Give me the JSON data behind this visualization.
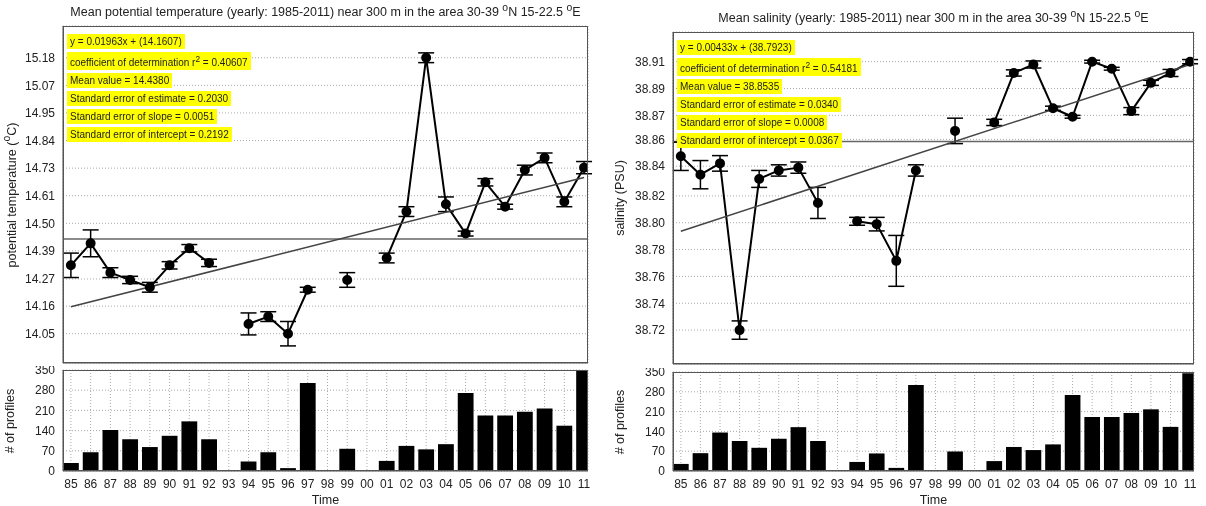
{
  "chart_data": [
    {
      "type": "line",
      "title": "Mean potential temperature (yearly: 1985-2011) near 300 m in the area 30-39 $^{o}$N 15-22.5 $^{o}$E",
      "ylabel": "potential temperature ($^{o}$C)",
      "categories": [
        "85",
        "86",
        "87",
        "88",
        "89",
        "90",
        "91",
        "92",
        "93",
        "94",
        "95",
        "96",
        "97",
        "98",
        "99",
        "00",
        "01",
        "02",
        "03",
        "04",
        "05",
        "06",
        "07",
        "08",
        "09",
        "10",
        "11"
      ],
      "series": [
        {
          "color": "#000000",
          "values": [
            14.33,
            14.42,
            14.3,
            14.27,
            14.24,
            14.33,
            14.4,
            14.34,
            null,
            14.09,
            14.12,
            14.05,
            14.23,
            null,
            14.27,
            null,
            14.36,
            14.55,
            15.18,
            14.58,
            14.46,
            14.67,
            14.57,
            14.72,
            14.77,
            14.59,
            14.73
          ],
          "errors": [
            0.05,
            0.055,
            0.02,
            0.015,
            0.02,
            0.015,
            0.015,
            0.015,
            null,
            0.045,
            0.02,
            0.05,
            0.01,
            null,
            0.03,
            null,
            0.02,
            0.02,
            0.02,
            0.03,
            0.01,
            0.015,
            0.01,
            0.02,
            0.02,
            0.02,
            0.025
          ]
        },
        {
          "type": "line",
          "color": "#444444",
          "x": [
            "85",
            "11"
          ],
          "values": [
            14.16,
            14.69
          ],
          "marker": "none"
        }
      ],
      "ref_lines": [
        {
          "axis": "y",
          "value": 14.438,
          "color": "#666666"
        }
      ],
      "ylim": [
        13.93,
        15.31
      ],
      "yticks": [
        {
          "value": 14.05,
          "label": "14.05"
        },
        {
          "value": 14.163,
          "label": "14.16"
        },
        {
          "value": 14.274,
          "label": "14.27"
        },
        {
          "value": 14.389,
          "label": "14.39"
        },
        {
          "value": 14.502,
          "label": "14.50"
        },
        {
          "value": 14.615,
          "label": "14.61"
        },
        {
          "value": 14.728,
          "label": "14.73"
        },
        {
          "value": 14.841,
          "label": "14.84"
        },
        {
          "value": 14.954,
          "label": "14.95"
        },
        {
          "value": 15.067,
          "label": "15.07"
        },
        {
          "value": 15.18,
          "label": "15.18"
        }
      ],
      "annotations": [
        "y = 0.01963x + (14.1607)",
        "coefficient of determination r$^{2}$ = 0.40607",
        "Mean value = 14.4380",
        "Standard error of estimate = 0.2030",
        "Standard error of slope = 0.0051",
        "Standard error of intercept = 0.2192"
      ],
      "grid": true,
      "marker": "circle",
      "tick_labels": "y"
    },
    {
      "type": "bar",
      "xlabel": "Time",
      "ylabel": "# of profiles",
      "color": "#000000",
      "categories": [
        "85",
        "86",
        "87",
        "88",
        "89",
        "90",
        "91",
        "92",
        "93",
        "94",
        "95",
        "96",
        "97",
        "98",
        "99",
        "00",
        "01",
        "02",
        "03",
        "04",
        "05",
        "06",
        "07",
        "08",
        "09",
        "10",
        "11"
      ],
      "values": [
        28,
        65,
        142,
        110,
        83,
        122,
        172,
        110,
        null,
        33,
        65,
        10,
        305,
        null,
        77,
        null,
        35,
        87,
        75,
        93,
        270,
        192,
        192,
        205,
        217,
        157,
        347
      ],
      "ylim": [
        0,
        350
      ],
      "yticks": [
        0,
        70,
        140,
        210,
        280,
        350
      ],
      "grid": true
    },
    {
      "type": "line",
      "title": "Mean salinity (yearly: 1985-2011) near 300 m in the area 30-39 $^{o}$N 15-22.5 $^{o}$E",
      "ylabel": "salinity (PSU)",
      "categories": [
        "85",
        "86",
        "87",
        "88",
        "89",
        "90",
        "91",
        "92",
        "93",
        "94",
        "95",
        "96",
        "97",
        "98",
        "99",
        "00",
        "01",
        "02",
        "03",
        "04",
        "05",
        "06",
        "07",
        "08",
        "09",
        "10",
        "11"
      ],
      "series": [
        {
          "color": "#000000",
          "values": [
            38.843,
            38.83,
            38.838,
            38.72,
            38.827,
            38.833,
            38.835,
            38.81,
            null,
            38.797,
            38.795,
            38.769,
            38.833,
            null,
            38.861,
            null,
            38.867,
            38.902,
            38.908,
            38.877,
            38.871,
            38.91,
            38.905,
            38.875,
            38.895,
            38.902,
            38.91
          ],
          "errors": [
            0.01,
            0.01,
            0.0055,
            0.0065,
            0.006,
            0.004,
            0.004,
            0.011,
            null,
            0.0028,
            0.0048,
            0.018,
            0.004,
            null,
            0.009,
            null,
            0.0022,
            0.0022,
            0.0025,
            0.0015,
            0.001,
            0.001,
            0.001,
            0.0025,
            0.0018,
            0.0025,
            0.0015
          ]
        },
        {
          "type": "line",
          "color": "#444444",
          "x": [
            "85",
            "11"
          ],
          "values": [
            38.79,
            38.908
          ],
          "marker": "none"
        }
      ],
      "ref_lines": [
        {
          "axis": "y",
          "value": 38.8535,
          "color": "#666666"
        }
      ],
      "ylim": [
        38.696,
        38.931
      ],
      "yticks": [
        {
          "value": 38.72,
          "label": "38.72"
        },
        {
          "value": 38.739,
          "label": "38.74"
        },
        {
          "value": 38.758,
          "label": "38.76"
        },
        {
          "value": 38.777,
          "label": "38.78"
        },
        {
          "value": 38.796,
          "label": "38.80"
        },
        {
          "value": 38.815,
          "label": "38.82"
        },
        {
          "value": 38.836,
          "label": "38.84"
        },
        {
          "value": 38.855,
          "label": "38.86"
        },
        {
          "value": 38.872,
          "label": "38.87"
        },
        {
          "value": 38.891,
          "label": "38.89"
        },
        {
          "value": 38.91,
          "label": "38.91"
        }
      ],
      "annotations": [
        "y = 0.00433x + (38.7923)",
        "coefficient of determination r$^{2}$ = 0.54181",
        "Mean value = 38.8535",
        "Standard error of estimate = 0.0340",
        "Standard error of slope = 0.0008",
        "Standard error of intercept = 0.0367"
      ],
      "grid": true,
      "marker": "circle",
      "tick_labels": "y"
    },
    {
      "type": "bar",
      "xlabel": "Time",
      "ylabel": "# of profiles",
      "color": "#000000",
      "categories": [
        "85",
        "86",
        "87",
        "88",
        "89",
        "90",
        "91",
        "92",
        "93",
        "94",
        "95",
        "96",
        "97",
        "98",
        "99",
        "00",
        "01",
        "02",
        "03",
        "04",
        "05",
        "06",
        "07",
        "08",
        "09",
        "10",
        "11"
      ],
      "values": [
        25,
        63,
        136,
        106,
        82,
        114,
        155,
        106,
        null,
        32,
        62,
        11,
        304,
        null,
        69,
        null,
        35,
        85,
        74,
        94,
        269,
        191,
        191,
        205,
        218,
        156,
        346
      ],
      "ylim": [
        0,
        350
      ],
      "yticks": [
        0,
        70,
        140,
        210,
        280,
        350
      ],
      "grid": true
    }
  ]
}
